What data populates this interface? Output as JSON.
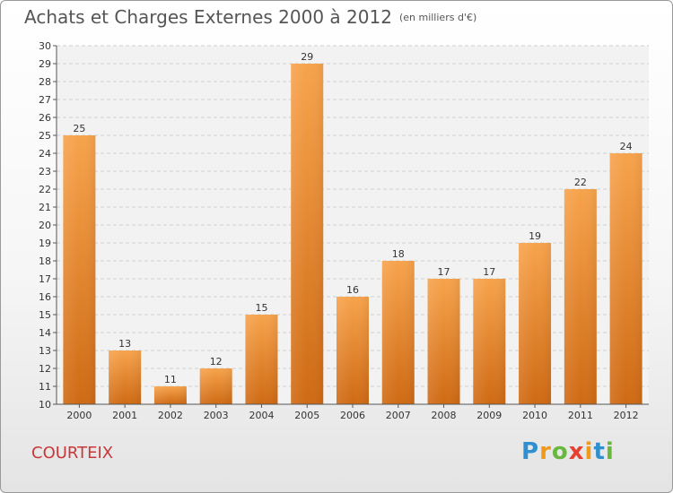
{
  "header": {
    "title": "Achats et Charges Externes 2000 à 2012",
    "subtitle": "(en milliers d'€)"
  },
  "footer": {
    "commune": "COURTEIX",
    "logo_text": "Proxiti",
    "logo_colors": [
      "#2f8fcf",
      "#f09a1c",
      "#69b83e",
      "#e84030",
      "#f09a1c",
      "#2f8fcf",
      "#69b83e"
    ]
  },
  "chart_data": {
    "type": "bar",
    "title": "Achats et Charges Externes 2000 à 2012",
    "subtitle": "(en milliers d'€)",
    "categories": [
      "2000",
      "2001",
      "2002",
      "2003",
      "2004",
      "2005",
      "2006",
      "2007",
      "2008",
      "2009",
      "2010",
      "2011",
      "2012"
    ],
    "values": [
      25,
      13,
      11,
      12,
      15,
      29,
      16,
      18,
      17,
      17,
      19,
      22,
      24
    ],
    "ylim": [
      10,
      30
    ],
    "yticks": [
      10,
      11,
      12,
      13,
      14,
      15,
      16,
      17,
      18,
      19,
      20,
      21,
      22,
      23,
      24,
      25,
      26,
      27,
      28,
      29,
      30
    ],
    "grid": true,
    "bar_color_top": "#f7a34c",
    "bar_color_bottom": "#cf6a14",
    "xlabel": "",
    "ylabel": ""
  }
}
